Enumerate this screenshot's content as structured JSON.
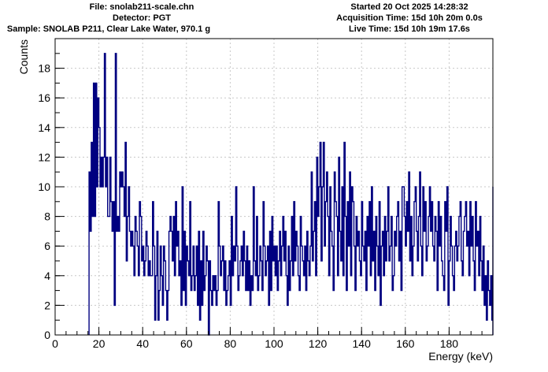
{
  "header": {
    "file": "File: snolab211-scale.chn",
    "detector": "Detector: PGT",
    "sample": "Sample: SNOLAB P211, Clear Lake Water, 970.1 g",
    "started": "Started 20 Oct 2025 14:28:32",
    "acq_time": "Acquisition Time: 15d 10h 20m 0.0s",
    "live_time": "Live Time: 15d 10h 19m 17.6s"
  },
  "colors": {
    "series": "#000080",
    "axis": "#000000",
    "background": "#ffffff"
  },
  "chart_data": {
    "type": "line",
    "style": "step-histogram",
    "xlabel": "Energy (keV)",
    "ylabel": "Counts",
    "xlim": [
      0,
      200
    ],
    "ylim": [
      0,
      20
    ],
    "grid": true,
    "x_ticks": [
      0,
      20,
      40,
      60,
      80,
      100,
      120,
      140,
      160,
      180
    ],
    "y_ticks": [
      0,
      2,
      4,
      6,
      8,
      10,
      12,
      14,
      16,
      18
    ],
    "bin_width_keV": 0.5,
    "x_start": 15.5,
    "series": [
      {
        "values": [
          11,
          7,
          13,
          8,
          17,
          8,
          17,
          10,
          16,
          14,
          10,
          12,
          10,
          12,
          19,
          10,
          12,
          8,
          8,
          12,
          9,
          7,
          9,
          2,
          19,
          7,
          8,
          7,
          11,
          10,
          11,
          10,
          8,
          13,
          5,
          8,
          10,
          7,
          6,
          7,
          6,
          4,
          8,
          7,
          6,
          4,
          9,
          8,
          5,
          6,
          4,
          5,
          7,
          6,
          4,
          5,
          4,
          4,
          9,
          6,
          1,
          4,
          7,
          1,
          3,
          6,
          4,
          2,
          6,
          5,
          3,
          1,
          3,
          7,
          8,
          7,
          5,
          8,
          4,
          9,
          6,
          7,
          4,
          5,
          2,
          10,
          3,
          7,
          2,
          6,
          5,
          4,
          9,
          3,
          4,
          6,
          3,
          4,
          6,
          2,
          7,
          1,
          5,
          2,
          7,
          3,
          4,
          6,
          5,
          0,
          5,
          3,
          2,
          4,
          3,
          4,
          2,
          3,
          9,
          6,
          4,
          5,
          6,
          3,
          5,
          2,
          3,
          4,
          5,
          2,
          8,
          4,
          6,
          5,
          10,
          6,
          3,
          4,
          5,
          6,
          4,
          7,
          5,
          3,
          6,
          3,
          5,
          2,
          4,
          3,
          10,
          5,
          4,
          8,
          3,
          4,
          6,
          5,
          3,
          9,
          6,
          4,
          5,
          6,
          2,
          7,
          3,
          8,
          5,
          6,
          4,
          6,
          3,
          5,
          7,
          4,
          6,
          8,
          5,
          7,
          4,
          2,
          6,
          3,
          5,
          8,
          4,
          9,
          5,
          7,
          6,
          4,
          3,
          8,
          6,
          5,
          4,
          6,
          3,
          7,
          5,
          4,
          6,
          11,
          5,
          7,
          9,
          4,
          12,
          8,
          10,
          13,
          5,
          10,
          13,
          6,
          9,
          11,
          8,
          4,
          10,
          7,
          6,
          3,
          11,
          9,
          8,
          4,
          12,
          7,
          5,
          10,
          4,
          13,
          8,
          3,
          9,
          6,
          11,
          4,
          10,
          9,
          6,
          3,
          8,
          6,
          7,
          5,
          4,
          9,
          6,
          5,
          7,
          3,
          8,
          6,
          9,
          4,
          10,
          5,
          7,
          3,
          8,
          6,
          4,
          9,
          2,
          6,
          7,
          4,
          8,
          5,
          7,
          10,
          5,
          6,
          8,
          3,
          4,
          7,
          6,
          8,
          9,
          5,
          7,
          3,
          10,
          10,
          8,
          6,
          9,
          7,
          11,
          5,
          8,
          4,
          6,
          9,
          10,
          7,
          5,
          8,
          11,
          6,
          4,
          10,
          7,
          9,
          5,
          6,
          8,
          10,
          7,
          9,
          6,
          5,
          8,
          7,
          3,
          9,
          6,
          8,
          5,
          4,
          3,
          9,
          7,
          10,
          2,
          5,
          8,
          6,
          4,
          3,
          6,
          7,
          5,
          6,
          8,
          9,
          5,
          4,
          7,
          8,
          9,
          6,
          7,
          4,
          9,
          6,
          8,
          5,
          3,
          9,
          6,
          7,
          4,
          8,
          5,
          3,
          6,
          2,
          4,
          1,
          5,
          3,
          2,
          4,
          1,
          6,
          4,
          8,
          6,
          5,
          9,
          10,
          4,
          8,
          6,
          5,
          9,
          3,
          4,
          5,
          10,
          7,
          8,
          9,
          8,
          3,
          8,
          6,
          7,
          9,
          10,
          4,
          7,
          5,
          8,
          6,
          1
        ]
      }
    ]
  }
}
